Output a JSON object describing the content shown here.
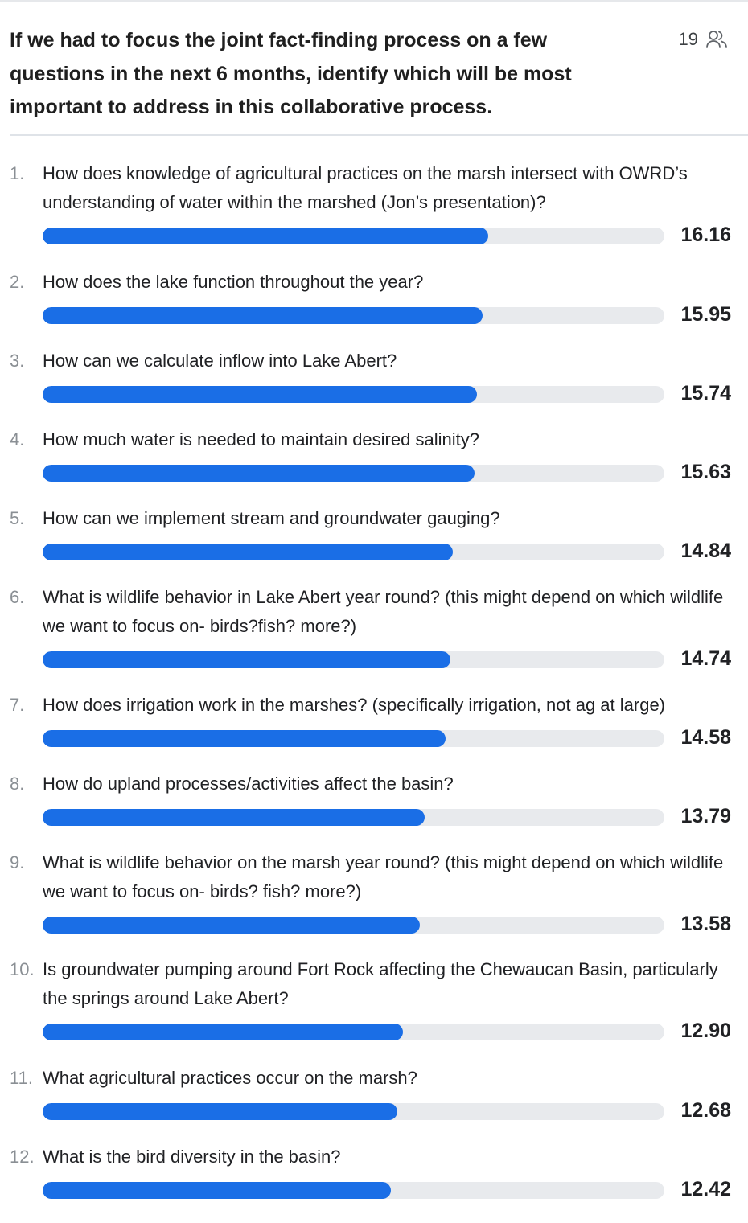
{
  "poll": {
    "question": "If we had to focus the joint fact-finding process on a few questions in the next 6 months, identify which will be most important to address in this collaborative process.",
    "participant_count": "19",
    "participant_icon": "people-icon",
    "accent_color": "#1a6ee6",
    "track_color": "#e8eaed"
  },
  "results": [
    {
      "number": "1.",
      "text": "How does knowledge of agricultural practices on the marsh intersect with OWRD’s understanding of water within the marshed (Jon’s presentation)?",
      "value": "16.16"
    },
    {
      "number": "2.",
      "text": "How does the lake function throughout the year?",
      "value": "15.95"
    },
    {
      "number": "3.",
      "text": "How can we calculate inflow into Lake Abert?",
      "value": "15.74"
    },
    {
      "number": "4.",
      "text": "How much water is needed to maintain desired salinity?",
      "value": "15.63"
    },
    {
      "number": "5.",
      "text": "How can we implement stream and groundwater gauging?",
      "value": "14.84"
    },
    {
      "number": "6.",
      "text": "What is wildlife behavior in Lake Abert year round? (this might depend on which wildlife we want to focus on- birds?fish? more?)",
      "value": "14.74"
    },
    {
      "number": "7.",
      "text": "How does irrigation work in the marshes? (specifically irrigation, not ag at large)",
      "value": "14.58"
    },
    {
      "number": "8.",
      "text": "How do upland processes/activities affect the basin?",
      "value": "13.79"
    },
    {
      "number": "9.",
      "text": "What is wildlife behavior on the marsh year round? (this might depend on which wildlife we want to focus on- birds? fish? more?)",
      "value": "13.58"
    },
    {
      "number": "10.",
      "text": "Is groundwater pumping around Fort Rock affecting the Chewaucan Basin, particularly the springs around Lake Abert?",
      "value": "12.90"
    },
    {
      "number": "11.",
      "text": "What agricultural practices occur on the marsh?",
      "value": "12.68"
    },
    {
      "number": "12.",
      "text": "What is the bird diversity in the basin?",
      "value": "12.42"
    }
  ]
}
